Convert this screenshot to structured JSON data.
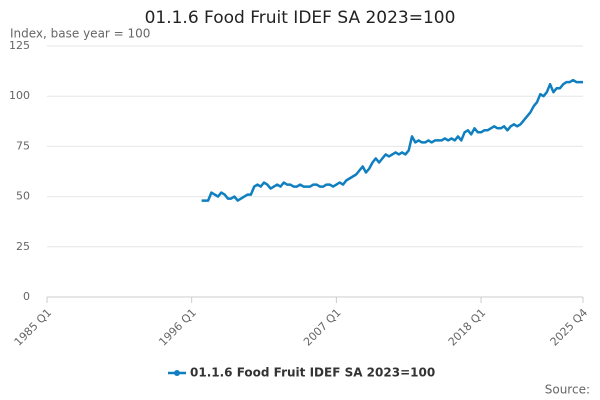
{
  "chart_data": {
    "type": "line",
    "title": "01.1.6 Food Fruit IDEF SA 2023=100",
    "y_label": "Index, base year = 100",
    "source": "Source:",
    "x": [
      1996.75,
      1997,
      1997.25,
      1997.5,
      1997.75,
      1998,
      1998.25,
      1998.5,
      1998.75,
      1999,
      1999.25,
      1999.5,
      1999.75,
      2000,
      2000.25,
      2000.5,
      2000.75,
      2001,
      2001.25,
      2001.5,
      2001.75,
      2002,
      2002.25,
      2002.5,
      2002.75,
      2003,
      2003.25,
      2003.5,
      2003.75,
      2004,
      2004.25,
      2004.5,
      2004.75,
      2005,
      2005.25,
      2005.5,
      2005.75,
      2006,
      2006.25,
      2006.5,
      2006.75,
      2007,
      2007.25,
      2007.5,
      2007.75,
      2008,
      2008.25,
      2008.5,
      2008.75,
      2009,
      2009.25,
      2009.5,
      2009.75,
      2010,
      2010.25,
      2010.5,
      2010.75,
      2011,
      2011.25,
      2011.5,
      2011.75,
      2012,
      2012.25,
      2012.5,
      2012.75,
      2013,
      2013.25,
      2013.5,
      2013.75,
      2014,
      2014.25,
      2014.5,
      2014.75,
      2015,
      2015.25,
      2015.5,
      2015.75,
      2016,
      2016.25,
      2016.5,
      2016.75,
      2017,
      2017.25,
      2017.5,
      2017.75,
      2018,
      2018.25,
      2018.5,
      2018.75,
      2019,
      2019.25,
      2019.5,
      2019.75,
      2020,
      2020.25,
      2020.5,
      2020.75,
      2021,
      2021.25,
      2021.5,
      2021.75,
      2022,
      2022.25,
      2022.5,
      2022.75,
      2023,
      2023.25,
      2023.5,
      2023.75,
      2024,
      2024.25,
      2024.5,
      2024.75,
      2025,
      2025.25,
      2025.5,
      2025.75
    ],
    "series": [
      {
        "name": "01.1.6 Food Fruit IDEF SA 2023=100",
        "color": "#0f7fc0",
        "values": [
          48,
          48,
          48,
          52,
          51,
          50,
          52,
          51,
          49,
          49,
          50,
          48,
          49,
          50,
          51,
          51,
          55,
          56,
          55,
          57,
          56,
          54,
          55,
          56,
          55,
          57,
          56,
          56,
          55,
          55,
          56,
          55,
          55,
          55,
          56,
          56,
          55,
          55,
          56,
          56,
          55,
          56,
          57,
          56,
          58,
          59,
          60,
          61,
          63,
          65,
          62,
          64,
          67,
          69,
          67,
          69,
          71,
          70,
          71,
          72,
          71,
          72,
          71,
          73,
          80,
          77,
          78,
          77,
          77,
          78,
          77,
          78,
          78,
          78,
          79,
          78,
          79,
          78,
          80,
          78,
          82,
          83,
          81,
          84,
          82,
          82,
          83,
          83,
          84,
          85,
          84,
          84,
          85,
          83,
          85,
          86,
          85,
          86,
          88,
          90,
          92,
          95,
          97,
          101,
          100,
          102,
          106,
          102,
          104,
          104,
          106,
          107,
          107,
          108,
          107,
          107,
          107
        ]
      }
    ],
    "xlim": [
      1985,
      2025.75
    ],
    "xticks": [
      {
        "value": 1985,
        "label": "1985 Q1"
      },
      {
        "value": 1996,
        "label": "1996 Q1"
      },
      {
        "value": 2007,
        "label": "2007 Q1"
      },
      {
        "value": 2018,
        "label": "2018 Q1"
      },
      {
        "value": 2025.75,
        "label": "2025 Q4"
      }
    ],
    "ylim": [
      0,
      125
    ],
    "yticks": [
      0,
      25,
      50,
      75,
      100,
      125
    ],
    "grid": true
  }
}
